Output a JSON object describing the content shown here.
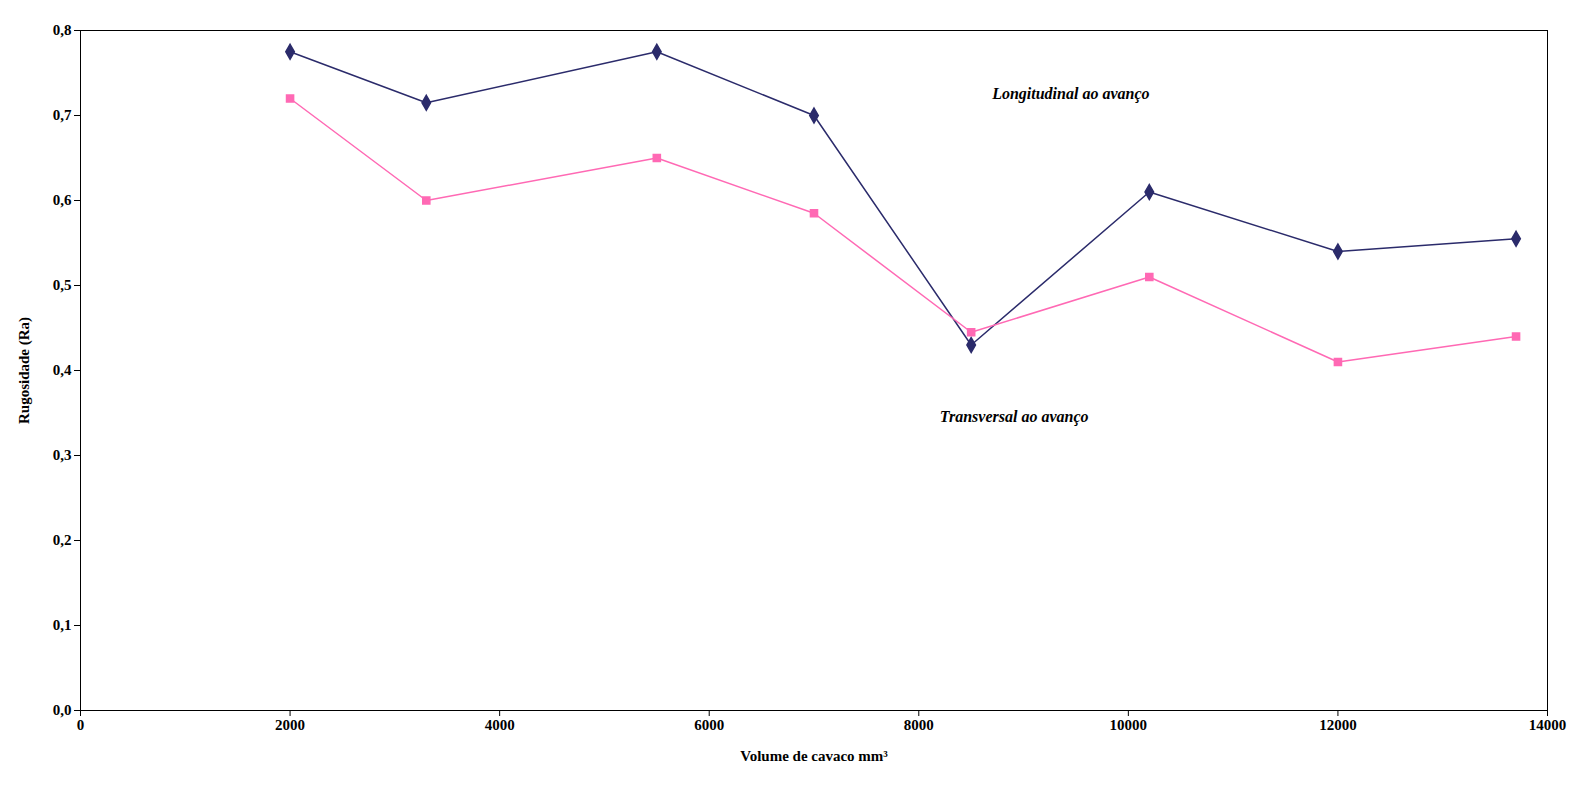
{
  "chart_data": {
    "type": "line",
    "xlabel": "Volume de cavaco mm³",
    "ylabel": "Rugosidade (Ra)",
    "x": [
      2000,
      3300,
      5500,
      7000,
      8500,
      10200,
      12000,
      13700
    ],
    "series": [
      {
        "color": "#2B2B6B",
        "marker": "diamond",
        "values": [
          0.775,
          0.715,
          0.775,
          0.7,
          0.43,
          0.61,
          0.54,
          0.555
        ]
      },
      {
        "color": "#FF69B4",
        "marker": "square",
        "values": [
          0.72,
          0.6,
          0.65,
          0.585,
          0.445,
          0.51,
          0.41,
          0.44
        ]
      }
    ],
    "annotations": [
      {
        "text": "Longitudinal ao avanço",
        "x": 8700,
        "y": 0.72
      },
      {
        "text": "Transversal ao avanço",
        "x": 8200,
        "y": 0.34
      }
    ],
    "xlim": [
      0,
      14000
    ],
    "xticks": [
      0,
      2000,
      4000,
      6000,
      8000,
      10000,
      12000,
      14000
    ],
    "ylim": [
      0,
      0.8
    ],
    "yticks": [
      {
        "value": 0,
        "label": "0,0"
      },
      {
        "value": 0.1,
        "label": "0,1"
      },
      {
        "value": 0.2,
        "label": "0,2"
      },
      {
        "value": 0.3,
        "label": "0,3"
      },
      {
        "value": 0.4,
        "label": "0,4"
      },
      {
        "value": 0.5,
        "label": "0,5"
      },
      {
        "value": 0.6,
        "label": "0,6"
      },
      {
        "value": 0.7,
        "label": "0,7"
      },
      {
        "value": 0.8,
        "label": "0,8"
      }
    ],
    "grid": false
  }
}
